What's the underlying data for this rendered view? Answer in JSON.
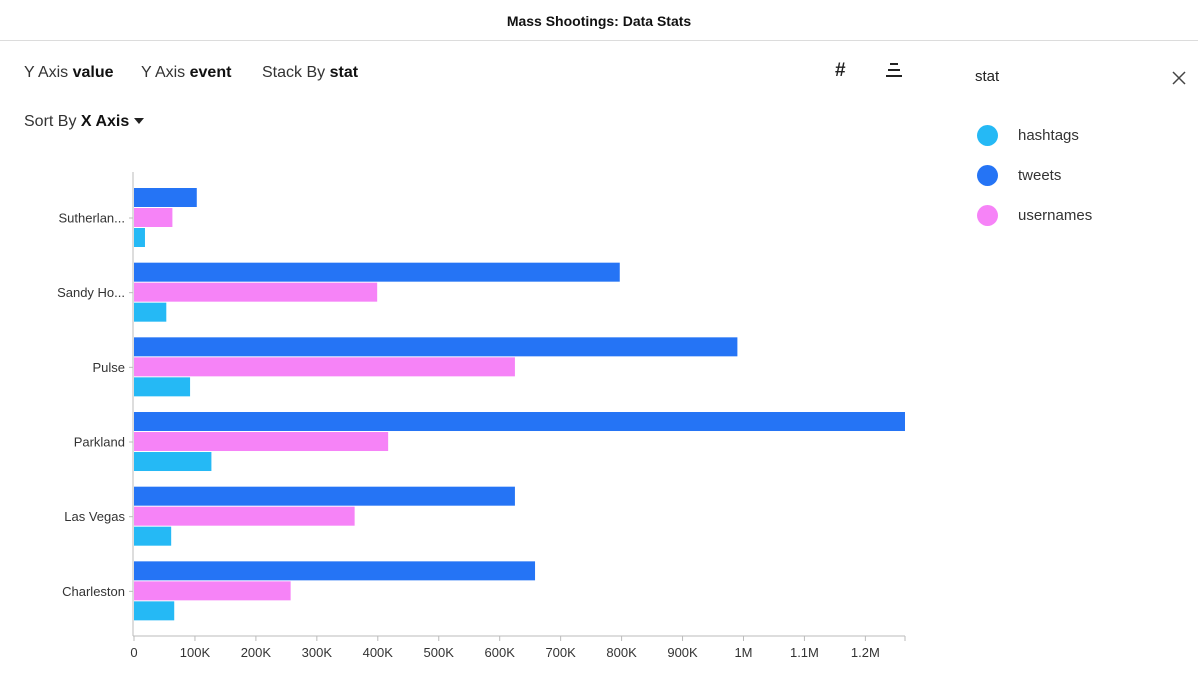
{
  "header": {
    "title": "Mass Shootings: Data Stats"
  },
  "controls": {
    "y_axis_value_prefix": "Y Axis",
    "y_axis_value": "value",
    "y_axis_event_prefix": "Y Axis",
    "y_axis_event": "event",
    "stack_by_prefix": "Stack By",
    "stack_by": "stat",
    "sort_by_prefix": "Sort By",
    "sort_by": "X Axis",
    "hash_symbol": "#"
  },
  "legend": {
    "title": "stat",
    "items": [
      {
        "label": "hashtags",
        "color": "#25b9f5"
      },
      {
        "label": "tweets",
        "color": "#2574f5"
      },
      {
        "label": "usernames",
        "color": "#f683f7"
      }
    ]
  },
  "chart_data": {
    "type": "bar",
    "orientation": "horizontal",
    "categories": [
      "Sutherlan...",
      "Sandy Ho...",
      "Pulse",
      "Parkland",
      "Las Vegas",
      "Charleston"
    ],
    "series": [
      {
        "name": "tweets",
        "color": "#2574f5",
        "values": [
          103000,
          797000,
          990000,
          1265000,
          625000,
          658000
        ]
      },
      {
        "name": "usernames",
        "color": "#f683f7",
        "values": [
          63000,
          399000,
          625000,
          417000,
          362000,
          257000
        ]
      },
      {
        "name": "hashtags",
        "color": "#25b9f5",
        "values": [
          18000,
          53000,
          92000,
          127000,
          61000,
          66000
        ]
      }
    ],
    "xlim": [
      0,
      1265000
    ],
    "x_ticks": [
      0,
      100000,
      200000,
      300000,
      400000,
      500000,
      600000,
      700000,
      800000,
      900000,
      1000000,
      1100000,
      1200000
    ],
    "x_tick_labels": [
      "0",
      "100K",
      "200K",
      "300K",
      "400K",
      "500K",
      "600K",
      "700K",
      "800K",
      "900K",
      "1M",
      "1.1M",
      "1.2M"
    ],
    "grid": false,
    "legend_position": "right"
  }
}
